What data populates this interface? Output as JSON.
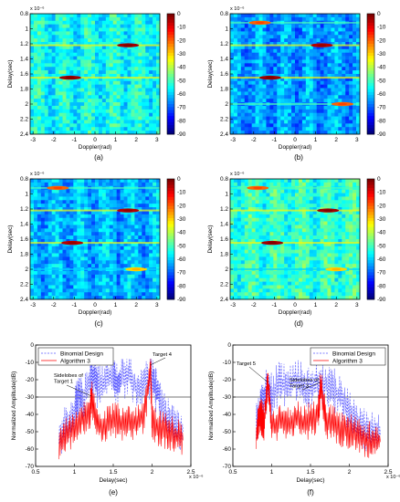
{
  "chart_data": [
    {
      "panel": "(a)",
      "type": "heatmap",
      "xlabel": "Doppler(rad)",
      "ylabel": "Delay(sec)",
      "y_exponent": "x 10⁻⁶",
      "xlim": [
        -3.14,
        3.14
      ],
      "ylim": [
        0.8,
        2.4
      ],
      "xticks": [
        "-3",
        "-2",
        "-1",
        "0",
        "1",
        "2",
        "3"
      ],
      "yticks": [
        "0.8",
        "1",
        "1.2",
        "1.4",
        "1.6",
        "1.8",
        "2",
        "2.2",
        "2.4"
      ],
      "colorbar_ticks": [
        "0",
        "-10",
        "-20",
        "-30",
        "-40",
        "-50",
        "-60",
        "-70",
        "-80",
        "-90"
      ],
      "clim": [
        -90,
        0
      ],
      "background_level_db": -55,
      "hotspots": [
        {
          "doppler": 1.6,
          "delay": 1.22,
          "level_db": -3
        },
        {
          "doppler": -1.2,
          "delay": 1.65,
          "level_db": -3
        }
      ]
    },
    {
      "panel": "(b)",
      "type": "heatmap",
      "xlabel": "Doppler(rad)",
      "ylabel": "Delay(sec)",
      "y_exponent": "x 10⁻⁶",
      "xlim": [
        -3.14,
        3.14
      ],
      "ylim": [
        0.8,
        2.4
      ],
      "xticks": [
        "-3",
        "-2",
        "-1",
        "0",
        "1",
        "2",
        "3"
      ],
      "yticks": [
        "0.8",
        "1",
        "1.2",
        "1.4",
        "1.6",
        "1.8",
        "2",
        "2.2",
        "2.4"
      ],
      "colorbar_ticks": [
        "0",
        "-10",
        "-20",
        "-30",
        "-40",
        "-50",
        "-60",
        "-70",
        "-80",
        "-90"
      ],
      "clim": [
        -90,
        0
      ],
      "background_level_db": -65,
      "hotspots": [
        {
          "doppler": -1.7,
          "delay": 0.92,
          "level_db": -20
        },
        {
          "doppler": 1.3,
          "delay": 1.22,
          "level_db": -5
        },
        {
          "doppler": -1.2,
          "delay": 1.65,
          "level_db": -3
        },
        {
          "doppler": 2.3,
          "delay": 2.0,
          "level_db": -20
        }
      ]
    },
    {
      "panel": "(c)",
      "type": "heatmap",
      "xlabel": "Doppler(rad)",
      "ylabel": "Delay(sec)",
      "y_exponent": "x 10⁻⁶",
      "xlim": [
        -3.14,
        3.14
      ],
      "ylim": [
        0.8,
        2.4
      ],
      "xticks": [
        "-3",
        "-2",
        "-1",
        "0",
        "1",
        "2",
        "3"
      ],
      "yticks": [
        "0.8",
        "1",
        "1.2",
        "1.4",
        "1.6",
        "1.8",
        "2",
        "2.2",
        "2.4"
      ],
      "colorbar_ticks": [
        "0",
        "-10",
        "-20",
        "-30",
        "-40",
        "-50",
        "-60",
        "-70",
        "-80",
        "-90"
      ],
      "clim": [
        -90,
        0
      ],
      "background_level_db": -63,
      "hotspots": [
        {
          "doppler": -1.8,
          "delay": 0.92,
          "level_db": -20
        },
        {
          "doppler": 1.6,
          "delay": 1.22,
          "level_db": -5
        },
        {
          "doppler": -1.1,
          "delay": 1.65,
          "level_db": -5
        },
        {
          "doppler": 2.0,
          "delay": 2.0,
          "level_db": -30
        }
      ]
    },
    {
      "panel": "(d)",
      "type": "heatmap",
      "xlabel": "Doppler(rad)",
      "ylabel": "Delay(sec)",
      "y_exponent": "x 10⁻⁶",
      "xlim": [
        -3.14,
        3.14
      ],
      "ylim": [
        0.8,
        2.4
      ],
      "xticks": [
        "-3",
        "-2",
        "-1",
        "0",
        "1",
        "2",
        "3"
      ],
      "yticks": [
        "0.8",
        "1",
        "1.2",
        "1.4",
        "1.6",
        "1.8",
        "2",
        "2.2",
        "2.4"
      ],
      "colorbar_ticks": [
        "0",
        "-10",
        "-20",
        "-30",
        "-40",
        "-50",
        "-60",
        "-70",
        "-80",
        "-90"
      ],
      "clim": [
        -90,
        0
      ],
      "background_level_db": -52,
      "hotspots": [
        {
          "doppler": -1.8,
          "delay": 0.92,
          "level_db": -20
        },
        {
          "doppler": 1.6,
          "delay": 1.22,
          "level_db": -3
        },
        {
          "doppler": -1.1,
          "delay": 1.65,
          "level_db": -3
        },
        {
          "doppler": 2.0,
          "delay": 2.0,
          "level_db": -30
        }
      ]
    },
    {
      "panel": "(e)",
      "type": "line",
      "xlabel": "Delay(sec)",
      "ylabel": "Normalized Amplitude(dB)",
      "x_exponent": "x 10⁻⁶",
      "xlim": [
        0.5,
        2.5
      ],
      "ylim": [
        -70,
        0
      ],
      "xticks": [
        "0.5",
        "1",
        "1.5",
        "2",
        "2.5"
      ],
      "yticks": [
        "0",
        "-10",
        "-20",
        "-30",
        "-40",
        "-50",
        "-60",
        "-70"
      ],
      "threshold_db": -30,
      "legend": {
        "placement": "top-left"
      },
      "series": [
        {
          "name": "Binomial Design",
          "style": "dashed",
          "color": "#5a5aff",
          "x": [
            0.8,
            0.9,
            1.0,
            1.05,
            1.1,
            1.2,
            1.25,
            1.3,
            1.4,
            1.5,
            1.55,
            1.6,
            1.7,
            1.8,
            1.9,
            2.0,
            2.05,
            2.1,
            2.2,
            2.3,
            2.4
          ],
          "y": [
            -52,
            -45,
            -38,
            -28,
            -32,
            -22,
            -16,
            -25,
            -20,
            -18,
            -24,
            -20,
            -17,
            -25,
            -21,
            -18,
            -26,
            -30,
            -42,
            -45,
            -50
          ]
        },
        {
          "name": "Algorithm 3",
          "style": "solid",
          "color": "#ff0000",
          "x": [
            0.8,
            0.9,
            1.0,
            1.1,
            1.2,
            1.22,
            1.3,
            1.4,
            1.5,
            1.6,
            1.7,
            1.8,
            1.9,
            1.98,
            2.0,
            2.1,
            2.2,
            2.3,
            2.4
          ],
          "y": [
            -58,
            -52,
            -48,
            -42,
            -40,
            -30,
            -45,
            -47,
            -42,
            -45,
            -43,
            -46,
            -40,
            -12,
            -45,
            -48,
            -50,
            -52,
            -55
          ]
        }
      ],
      "annotations": [
        {
          "text": "Sidelobes of Target 1",
          "x": 1.22,
          "y": -30
        },
        {
          "text": "Target 4",
          "x": 1.98,
          "y": -12
        }
      ]
    },
    {
      "panel": "(f)",
      "type": "line",
      "xlabel": "Delay(sec)",
      "ylabel": "Normalized Amplitude(dB)",
      "x_exponent": "x 10⁻⁶",
      "xlim": [
        0.5,
        2.5
      ],
      "ylim": [
        -70,
        0
      ],
      "xticks": [
        "0.5",
        "1",
        "1.5",
        "2",
        "2.5"
      ],
      "yticks": [
        "0",
        "-10",
        "-20",
        "-30",
        "-40",
        "-50",
        "-60",
        "-70"
      ],
      "threshold_db": -30,
      "legend": {
        "placement": "top-right"
      },
      "series": [
        {
          "name": "Binomial Design",
          "style": "dashed",
          "color": "#5a5aff",
          "x": [
            0.8,
            0.85,
            0.9,
            0.95,
            1.0,
            1.1,
            1.2,
            1.3,
            1.4,
            1.5,
            1.6,
            1.7,
            1.8,
            1.9,
            2.0,
            2.1,
            2.2,
            2.3,
            2.4
          ],
          "y": [
            -45,
            -38,
            -30,
            -25,
            -28,
            -22,
            -24,
            -20,
            -22,
            -24,
            -20,
            -23,
            -26,
            -30,
            -38,
            -44,
            -48,
            -50,
            -52
          ]
        },
        {
          "name": "Algorithm 3",
          "style": "solid",
          "color": "#ff0000",
          "x": [
            0.8,
            0.85,
            0.9,
            0.95,
            1.0,
            1.1,
            1.2,
            1.3,
            1.4,
            1.5,
            1.6,
            1.63,
            1.7,
            1.8,
            1.9,
            2.0,
            2.1,
            2.2,
            2.3,
            2.4
          ],
          "y": [
            -52,
            -40,
            -45,
            -22,
            -48,
            -44,
            -46,
            -42,
            -45,
            -43,
            -40,
            -22,
            -44,
            -46,
            -48,
            -50,
            -52,
            -54,
            -55,
            -56
          ]
        }
      ],
      "annotations": [
        {
          "text": "Target 5",
          "x": 0.95,
          "y": -22
        },
        {
          "text": "Sidelobes of Target 3",
          "x": 1.63,
          "y": -22
        }
      ]
    }
  ]
}
